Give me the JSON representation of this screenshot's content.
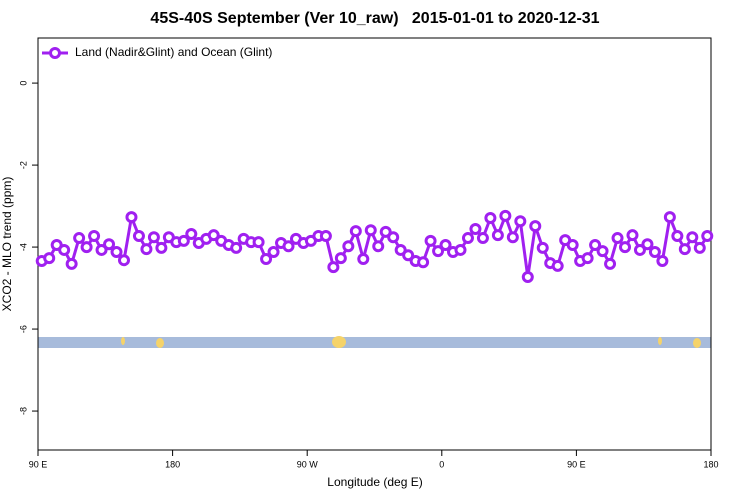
{
  "chart_data": {
    "type": "line",
    "title": "45S-40S September (Ver 10_raw)   2015-01-01 to 2020-12-31",
    "xlabel": "Longitude (deg E)",
    "ylabel": "XCO2 - MLO trend (ppm)",
    "xlim": [
      90,
      540
    ],
    "ylim": [
      -8.95,
      1.1
    ],
    "xticks": [
      {
        "value": 90,
        "label": "90 E"
      },
      {
        "value": 180,
        "label": "180"
      },
      {
        "value": 270,
        "label": "90 W"
      },
      {
        "value": 360,
        "label": "0"
      },
      {
        "value": 450,
        "label": "90 E"
      },
      {
        "value": 540,
        "label": "180"
      }
    ],
    "yticks": [
      -8,
      -6,
      -4,
      -2,
      0
    ],
    "legend": "top-left",
    "x": [
      92.5,
      97.5,
      102.5,
      107.5,
      112.5,
      117.5,
      122.5,
      127.5,
      132.5,
      137.5,
      142.5,
      147.5,
      152.5,
      157.5,
      162.5,
      167.5,
      172.5,
      177.5,
      182.5,
      187.5,
      192.5,
      197.5,
      202.5,
      207.5,
      212.5,
      217.5,
      222.5,
      227.5,
      232.5,
      237.5,
      242.5,
      247.5,
      252.5,
      257.5,
      262.5,
      267.5,
      272.5,
      277.5,
      282.5,
      287.5,
      292.5,
      297.5,
      302.5,
      307.5,
      312.5,
      317.5,
      322.5,
      327.5,
      332.5,
      337.5,
      342.5,
      347.5,
      352.5,
      357.5,
      362.5,
      367.5,
      372.5,
      377.5,
      382.5,
      387.5,
      392.5,
      397.5,
      402.5,
      407.5,
      412.5,
      417.5,
      422.5,
      427.5,
      432.5,
      437.5,
      442.5,
      447.5,
      452.5,
      457.5,
      462.5,
      467.5,
      472.5,
      477.5,
      482.5,
      487.5,
      492.5,
      497.5,
      502.5,
      507.5,
      512.5,
      517.5,
      522.5,
      527.5,
      532.5,
      537.5
    ],
    "series": [
      {
        "name": "Land (Nadir&Glint) and Ocean (Glint)",
        "color": "#a020f0",
        "values": [
          -4.34,
          -4.27,
          -3.95,
          -4.07,
          -4.41,
          -3.78,
          -4.0,
          -3.73,
          -4.07,
          -3.93,
          -4.12,
          -4.32,
          -3.27,
          -3.73,
          -4.05,
          -3.76,
          -4.02,
          -3.76,
          -3.88,
          -3.85,
          -3.68,
          -3.9,
          -3.8,
          -3.71,
          -3.85,
          -3.95,
          -4.02,
          -3.8,
          -3.88,
          -3.88,
          -4.29,
          -4.12,
          -3.9,
          -3.98,
          -3.8,
          -3.9,
          -3.85,
          -3.73,
          -3.73,
          -4.49,
          -4.27,
          -3.98,
          -3.61,
          -4.29,
          -3.59,
          -3.98,
          -3.63,
          -3.76,
          -4.07,
          -4.2,
          -4.34,
          -4.37,
          -3.85,
          -4.1,
          -3.95,
          -4.12,
          -4.07,
          -3.78,
          -3.56,
          -3.78,
          -3.29,
          -3.71,
          -3.24,
          -3.76,
          -3.37,
          -4.73,
          -3.49,
          -4.02,
          -4.39,
          -4.46,
          -3.83,
          -3.95,
          -4.34,
          -4.27,
          -3.95,
          -4.1,
          -4.41,
          -3.78,
          -4.0,
          -3.71,
          -4.07,
          -3.93,
          -4.12,
          -4.34,
          -3.27,
          -3.73,
          -4.05,
          -3.76,
          -4.02,
          -3.73
        ]
      }
    ]
  }
}
